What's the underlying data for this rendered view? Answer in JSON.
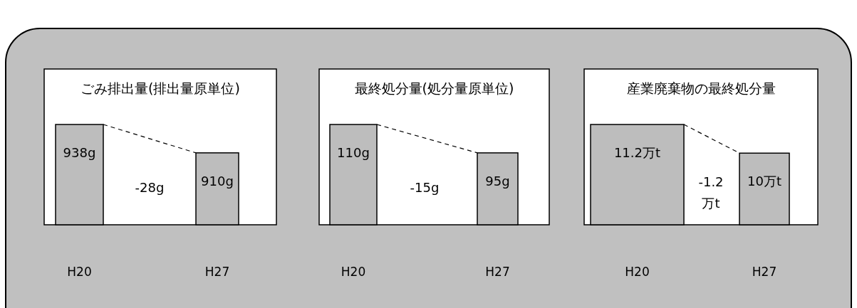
{
  "chart_data": [
    {
      "type": "bar",
      "title": "ごみ排出量(排出量原単位)",
      "categories": [
        "H20",
        "H27"
      ],
      "values": [
        938,
        910
      ],
      "value_labels": [
        "938g",
        "910g"
      ],
      "color": "#bdbdbd",
      "ylim": [
        839,
        938
      ],
      "annotations": [
        "-28g"
      ]
    },
    {
      "type": "bar",
      "title": "最終処分量(処分量原単位)",
      "categories": [
        "H20",
        "H27"
      ],
      "values": [
        110,
        95
      ],
      "value_labels": [
        "110g",
        "95g"
      ],
      "color": "#bdbdbd",
      "ylim": [
        57,
        110
      ],
      "annotations": [
        "-15g"
      ]
    },
    {
      "type": "bar",
      "title": "産業廃棄物の最終処分量",
      "categories": [
        "H20",
        "H27"
      ],
      "values": [
        11.2,
        10
      ],
      "value_labels": [
        "11.2万t",
        "10万t"
      ],
      "color": "#bdbdbd",
      "ylim": [
        7,
        11.2
      ],
      "annotations": [
        "-1.2 万t"
      ]
    }
  ]
}
